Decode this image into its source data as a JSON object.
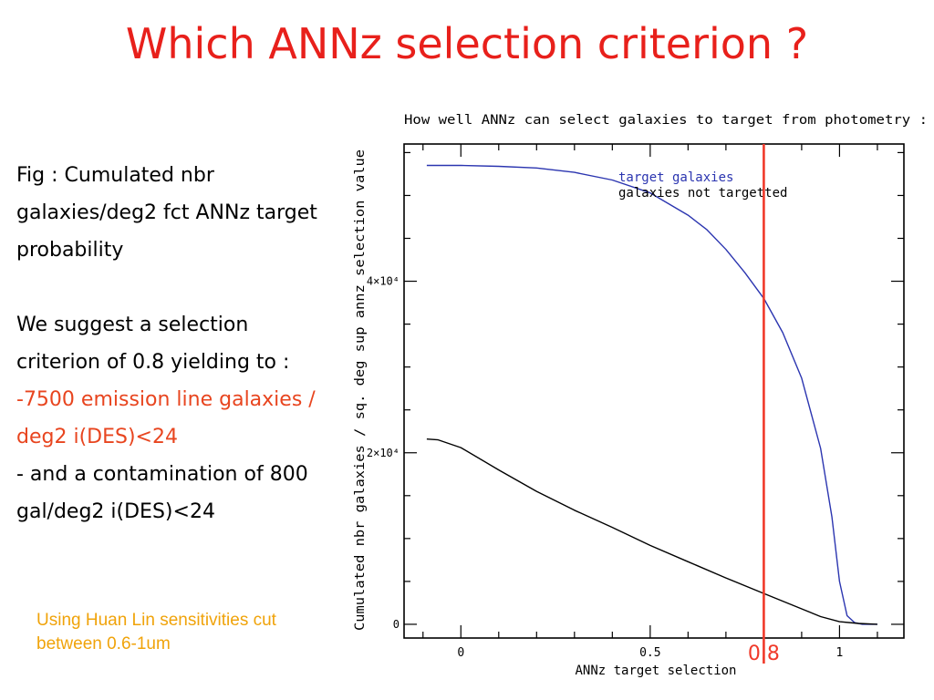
{
  "slide": {
    "title": "Which ANNz selection criterion ?",
    "caption_line": "Fig : Cumulated nbr galaxies/deg2 fct ANNz target probability",
    "suggest_line": "We suggest a selection criterion of 0.8 yielding to :",
    "result_red": "-7500 emission line galaxies / deg2 i(DES)<24",
    "result_black": "- and a contamination of 800 gal/deg2 i(DES)<24",
    "note": "Using Huan Lin sensitivities cut between 0.6-1um"
  },
  "colors": {
    "title": "#e8201b",
    "highlight_text": "#e8451f",
    "note": "#f0a30a",
    "target_series": "#2b35b0",
    "not_targeted_series": "#000000",
    "cut_line": "#f03a2a"
  },
  "chart_data": {
    "type": "line",
    "title": "How well ANNz can select galaxies to target from photometry :",
    "xlabel": "ANNz target selection",
    "ylabel": "Cumulated nbr galaxies / sq. deg sup annz selection value",
    "xlim": [
      -0.15,
      1.17
    ],
    "ylim": [
      -1600,
      56000
    ],
    "x_ticks": [
      {
        "value": 0,
        "label": "0"
      },
      {
        "value": 0.5,
        "label": "0.5"
      },
      {
        "value": 1,
        "label": "1"
      }
    ],
    "y_ticks": [
      {
        "value": 0,
        "label": "0"
      },
      {
        "value": 20000,
        "label": "2×10⁴"
      },
      {
        "value": 40000,
        "label": "4×10⁴"
      }
    ],
    "legend": {
      "position": "top-right",
      "entries": [
        "target galaxies",
        "galaxies not targetted"
      ]
    },
    "series": [
      {
        "name": "target galaxies",
        "x": [
          -0.09,
          0.0,
          0.1,
          0.2,
          0.3,
          0.4,
          0.5,
          0.6,
          0.65,
          0.7,
          0.75,
          0.8,
          0.85,
          0.9,
          0.95,
          0.98,
          1.0,
          1.02,
          1.04,
          1.06,
          1.1
        ],
        "y": [
          53500,
          53500,
          53400,
          53200,
          52700,
          51800,
          50300,
          47700,
          46000,
          43700,
          41000,
          38000,
          34000,
          28700,
          20500,
          12500,
          5000,
          1000,
          200,
          0,
          0
        ]
      },
      {
        "name": "galaxies not targetted",
        "x": [
          -0.09,
          -0.06,
          0.0,
          0.1,
          0.2,
          0.3,
          0.4,
          0.5,
          0.6,
          0.7,
          0.8,
          0.9,
          0.95,
          1.0,
          1.05,
          1.1
        ],
        "y": [
          21600,
          21500,
          20600,
          18000,
          15500,
          13300,
          11300,
          9200,
          7300,
          5400,
          3600,
          1800,
          900,
          300,
          100,
          0
        ]
      }
    ],
    "vertical_marker": {
      "x": 0.8,
      "label": "0.8"
    }
  }
}
